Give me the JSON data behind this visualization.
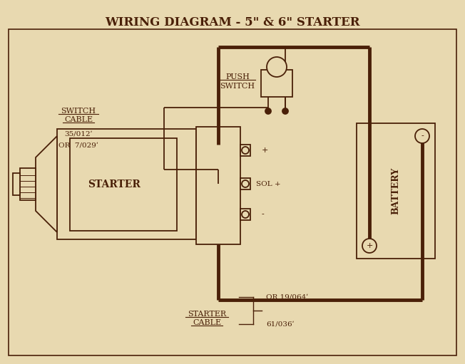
{
  "bg_color": "#e8d9b0",
  "line_color": "#4a2008",
  "text_color": "#4a2008",
  "title": "WIRING DIAGRAM - 5\" & 6\" STARTER",
  "title_fontsize": 12,
  "label_fontsize": 8,
  "small_fontsize": 7.5,
  "starter_cable_label_line1": "STARTER",
  "starter_cable_label_line2": "CABLE",
  "starter_cable_spec1": "61/036ʹ",
  "starter_cable_spec2": "OR 19/064ʹ",
  "switch_cable_label_line1": "SWITCH",
  "switch_cable_label_line2": "CABLE",
  "switch_cable_spec1": "35/012ʹ",
  "switch_cable_spec2": "OR  7/029ʹ",
  "starter_label": "STARTER",
  "battery_label": "BATTERY",
  "push_switch_label_line1": "PUSH",
  "push_switch_label_line2": "SWITCH",
  "sol_label": "SOL +",
  "minus_label": "-",
  "plus_label": "+",
  "bat_minus_label": "-",
  "bat_plus_label": "+"
}
